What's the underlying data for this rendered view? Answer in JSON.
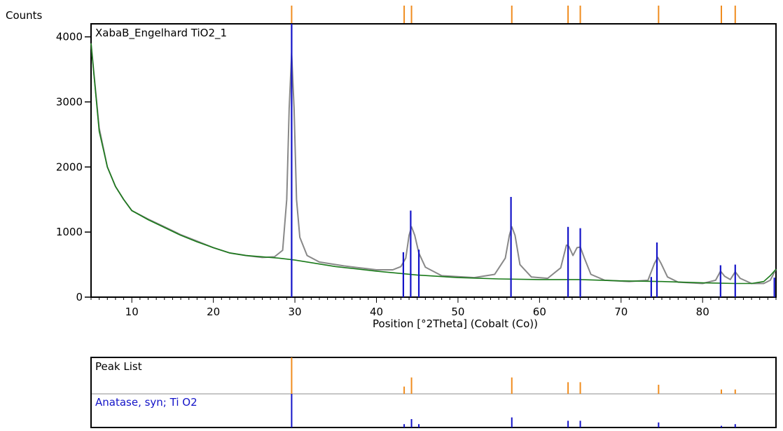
{
  "chart_data": {
    "type": "line",
    "ylabel": "Counts",
    "xlabel": "Position [°2Theta] (Cobalt (Co))",
    "sample_name": "XabaB_Engelhard TiO2_1",
    "xlim": [
      5,
      89
    ],
    "ylim": [
      0,
      4200
    ],
    "x_ticks": [
      10,
      20,
      30,
      40,
      50,
      60,
      70,
      80
    ],
    "y_ticks": [
      0,
      1000,
      2000,
      3000,
      4000
    ],
    "grid": false,
    "series": [
      {
        "color": "#888888",
        "x": [
          5,
          6,
          7,
          8,
          9,
          10,
          12,
          14,
          16,
          18,
          20,
          22,
          24,
          26,
          27.5,
          28.5,
          29.0,
          29.3,
          29.6,
          29.9,
          30.2,
          30.6,
          31.5,
          33,
          36,
          40,
          42,
          43,
          43.6,
          44.0,
          44.3,
          44.7,
          45.2,
          46,
          48,
          52,
          54.5,
          55.8,
          56.3,
          56.6,
          57.0,
          57.6,
          59,
          61,
          62.6,
          63.3,
          63.6,
          64.1,
          64.6,
          65.0,
          65.5,
          66.3,
          68,
          71,
          73.3,
          74.1,
          74.5,
          74.9,
          75.7,
          77,
          80,
          81.6,
          82.2,
          82.7,
          83.4,
          84.0,
          84.6,
          86,
          87.5,
          88.3,
          89
        ],
        "y": [
          3900,
          2600,
          2000,
          1700,
          1500,
          1330,
          1200,
          1080,
          960,
          860,
          760,
          680,
          640,
          610,
          620,
          720,
          1500,
          2900,
          3750,
          2900,
          1500,
          920,
          640,
          540,
          480,
          420,
          420,
          470,
          600,
          950,
          1080,
          950,
          680,
          460,
          330,
          300,
          350,
          600,
          950,
          1080,
          950,
          500,
          310,
          290,
          450,
          800,
          780,
          640,
          760,
          770,
          600,
          350,
          260,
          240,
          260,
          520,
          610,
          520,
          310,
          230,
          210,
          260,
          400,
          320,
          270,
          390,
          290,
          210,
          210,
          260,
          430
        ]
      },
      {
        "color": "#1a7a1a",
        "x": [
          5,
          6,
          7,
          8,
          9,
          10,
          12,
          14,
          16,
          18,
          20,
          22,
          24,
          26,
          28,
          30,
          32,
          35,
          40,
          45,
          50,
          55,
          60,
          65,
          70,
          75,
          80,
          84,
          86,
          87.5,
          88.3,
          89
        ],
        "y": [
          3900,
          2550,
          2000,
          1700,
          1500,
          1330,
          1190,
          1070,
          950,
          850,
          760,
          680,
          640,
          620,
          600,
          570,
          530,
          470,
          400,
          340,
          300,
          280,
          270,
          270,
          250,
          240,
          220,
          210,
          210,
          240,
          330,
          430
        ]
      }
    ],
    "reference_lines": {
      "color": "#1414c8",
      "x": [
        29.6,
        43.3,
        44.2,
        45.2,
        56.5,
        63.5,
        65.0,
        73.7,
        74.4,
        82.2,
        84.0,
        88.8
      ],
      "y": [
        4200,
        690,
        1330,
        730,
        1540,
        1080,
        1060,
        310,
        840,
        490,
        500,
        300
      ]
    },
    "top_markers": {
      "color": "#f08c1e",
      "x": [
        29.6,
        43.4,
        44.3,
        56.6,
        63.5,
        65.0,
        74.6,
        82.3,
        84.0
      ]
    },
    "peak_list": {
      "title": "Peak List",
      "color": "#f08c1e",
      "x": [
        29.6,
        43.4,
        44.3,
        56.6,
        63.5,
        65.0,
        74.6,
        82.3,
        84.0
      ],
      "heights": [
        1.0,
        0.2,
        0.45,
        0.45,
        0.32,
        0.32,
        0.25,
        0.12,
        0.12
      ]
    },
    "reference_pattern": {
      "name": "Anatase, syn; Ti O2",
      "color": "#1414c8",
      "x": [
        29.6,
        43.4,
        44.3,
        45.2,
        56.6,
        63.5,
        65.0,
        74.6,
        82.3,
        84.0
      ],
      "heights": [
        1.0,
        0.1,
        0.25,
        0.1,
        0.3,
        0.2,
        0.2,
        0.15,
        0.05,
        0.1
      ]
    }
  }
}
